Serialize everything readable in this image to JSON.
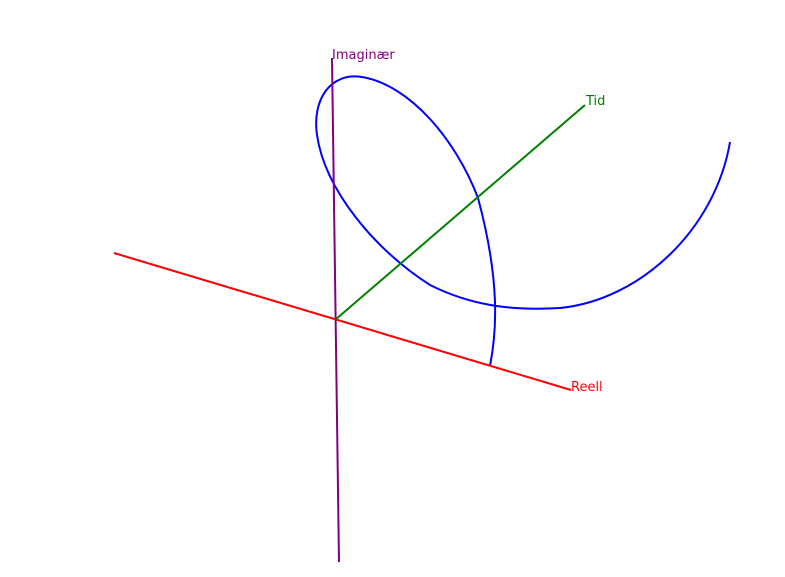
{
  "axes": {
    "real": {
      "label": "Reell",
      "color": "#ff0000"
    },
    "imaginary": {
      "label": "Imaginær",
      "color": "#800080"
    },
    "time": {
      "label": "Tid",
      "color": "#008000"
    }
  },
  "curve": {
    "color": "#0000ff"
  }
}
